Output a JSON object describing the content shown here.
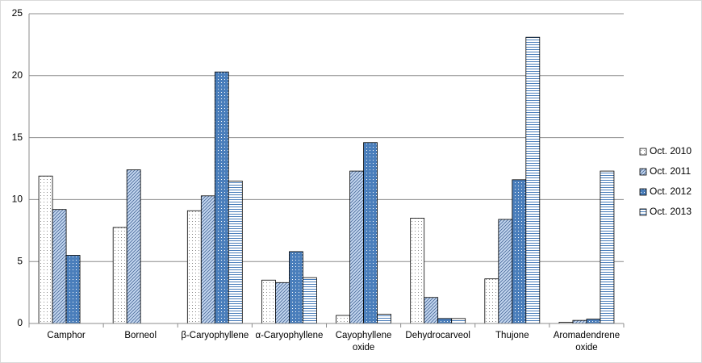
{
  "chart_data": {
    "type": "bar",
    "categories": [
      "Camphor",
      "Borneol",
      "β-Caryophyllene",
      "α-Caryophyllene",
      "Cayophyllene oxide",
      "Dehydrocarveol",
      "Thujone",
      "Aromadendrene oxide"
    ],
    "series": [
      {
        "name": "Oct. 2010",
        "color": "#ffffff",
        "pattern": "dots",
        "values": [
          11.9,
          7.75,
          9.1,
          3.5,
          0.65,
          8.5,
          3.6,
          0.1
        ]
      },
      {
        "name": "Oct. 2011",
        "color": "#c6d9f1",
        "pattern": "diagonal",
        "values": [
          9.2,
          12.4,
          10.3,
          3.3,
          12.3,
          2.1,
          8.4,
          0.25
        ]
      },
      {
        "name": "Oct. 2012",
        "color": "#4a7ebb",
        "pattern": "dots",
        "values": [
          5.5,
          null,
          20.3,
          5.8,
          14.6,
          0.4,
          11.6,
          0.35
        ]
      },
      {
        "name": "Oct. 2013",
        "color": "#ffffff",
        "pattern": "horizontal",
        "values": [
          null,
          null,
          11.5,
          3.7,
          0.75,
          0.4,
          23.1,
          12.3
        ]
      }
    ],
    "ylim": [
      0,
      25
    ],
    "yticks": [
      0,
      5,
      10,
      15,
      20,
      25
    ],
    "grid": true,
    "legend": "right"
  }
}
